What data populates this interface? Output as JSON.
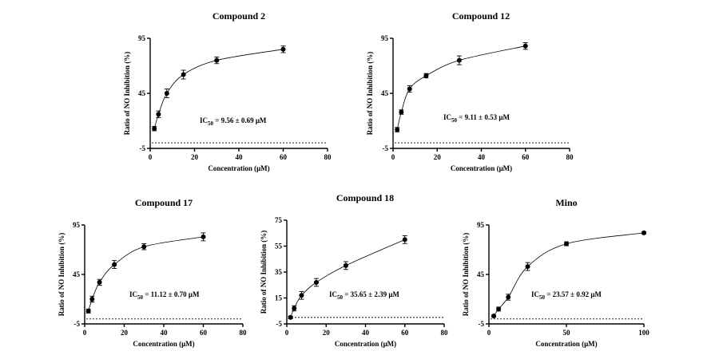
{
  "chart_data": [
    {
      "type": "scatter",
      "title": "Compound 2",
      "xlabel": "Concentration (μM)",
      "ylabel": "Ratio of NO Inhibition (%)",
      "xlim": [
        0,
        80
      ],
      "ylim": [
        -5,
        95
      ],
      "xticks": [
        0,
        20,
        40,
        60,
        80
      ],
      "yticks": [
        -5,
        45,
        95
      ],
      "x": [
        1.875,
        3.75,
        7.5,
        15,
        30,
        60
      ],
      "y": [
        13,
        26,
        45,
        62,
        75,
        85
      ],
      "err": [
        2,
        3,
        4,
        4,
        3,
        3
      ],
      "baseline": 0,
      "annotation": {
        "label": "IC",
        "sub": "50",
        "text": " = 9.56 ± 0.69 μM"
      }
    },
    {
      "type": "scatter",
      "title": "Compound 12",
      "xlabel": "Concentration (μM)",
      "ylabel": "Ratio of NO Inhibition (%)",
      "xlim": [
        0,
        80
      ],
      "ylim": [
        -5,
        95
      ],
      "xticks": [
        0,
        20,
        40,
        60,
        80
      ],
      "yticks": [
        -5,
        45,
        95
      ],
      "x": [
        1.875,
        3.75,
        7.5,
        15,
        30,
        60
      ],
      "y": [
        12,
        28,
        49,
        61,
        75,
        88
      ],
      "err": [
        2,
        2,
        3,
        2,
        4,
        3
      ],
      "baseline": 0,
      "annotation": {
        "label": "IC",
        "sub": "50",
        "text": " = 9.11 ± 0.53 μM"
      }
    },
    {
      "type": "scatter",
      "title": "Compound 17",
      "xlabel": "Concentration (μM)",
      "ylabel": "Ratio of NO Inhibition (%)",
      "xlim": [
        0,
        80
      ],
      "ylim": [
        -5,
        95
      ],
      "xticks": [
        0,
        20,
        40,
        60,
        80
      ],
      "yticks": [
        -5,
        45,
        95
      ],
      "x": [
        1.875,
        3.75,
        7.5,
        15,
        30,
        60
      ],
      "y": [
        8,
        20,
        37,
        55,
        73,
        83
      ],
      "err": [
        2,
        3,
        3,
        4,
        3,
        4
      ],
      "baseline": 0,
      "annotation": {
        "label": "IC",
        "sub": "50",
        "text": " = 11.12 ± 0.70 μM"
      }
    },
    {
      "type": "scatter",
      "title": "Compound 18",
      "xlabel": "Concentration (μM)",
      "ylabel": "Ratio of NO Inhibition (%)",
      "xlim": [
        0,
        80
      ],
      "ylim": [
        -5,
        75
      ],
      "xticks": [
        0,
        20,
        40,
        60,
        80
      ],
      "yticks": [
        -5,
        15,
        35,
        55,
        75
      ],
      "x": [
        1.875,
        3.75,
        7.5,
        15,
        30,
        60
      ],
      "y": [
        0,
        7,
        17,
        27,
        40,
        60
      ],
      "err": [
        1,
        2,
        3,
        3,
        3,
        3
      ],
      "baseline": 0,
      "annotation": {
        "label": "IC",
        "sub": "50",
        "text": " = 35.65 ± 2.39 μM"
      }
    },
    {
      "type": "scatter",
      "title": "Mino",
      "xlabel": "Concentration (μM)",
      "ylabel": "Ratio of NO Inhibition (%)",
      "xlim": [
        0,
        100
      ],
      "ylim": [
        -5,
        95
      ],
      "xticks": [
        0,
        50,
        100
      ],
      "yticks": [
        -5,
        45,
        95
      ],
      "x": [
        3.125,
        6.25,
        12.5,
        25,
        50,
        100
      ],
      "y": [
        3,
        10,
        22,
        53,
        76,
        87
      ],
      "err": [
        1,
        2,
        3,
        4,
        2,
        1
      ],
      "baseline": 0,
      "annotation": {
        "label": "IC",
        "sub": "50",
        "text": " = 23.57 ± 0.92 μM"
      }
    }
  ]
}
